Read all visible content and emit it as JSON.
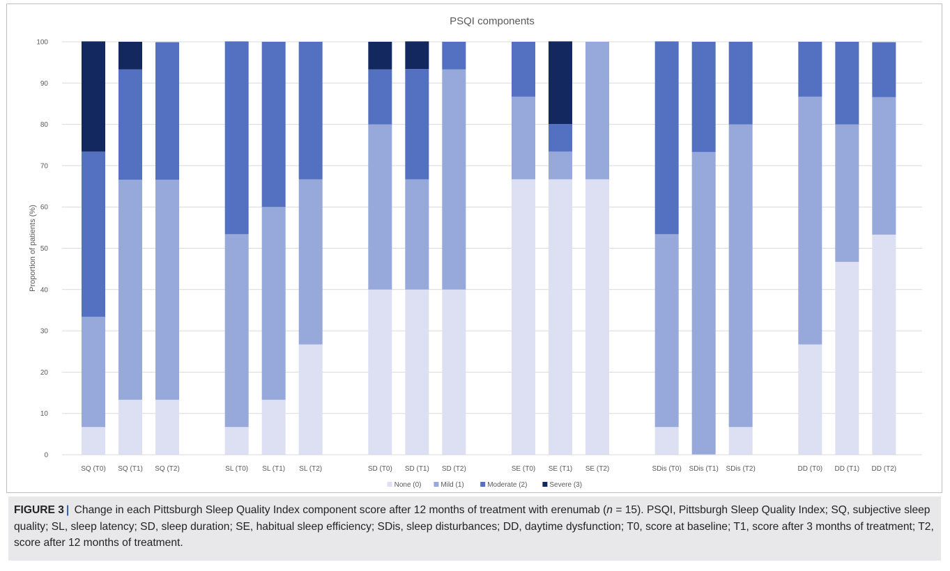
{
  "chart_data": {
    "type": "bar",
    "stacked": true,
    "title": "PSQI components",
    "xlabel": "",
    "ylabel": "Proportion of patients (%)",
    "ylim": [
      0,
      100
    ],
    "yticks": [
      0,
      10,
      20,
      30,
      40,
      50,
      60,
      70,
      80,
      90,
      100
    ],
    "grid": true,
    "legend_position": "bottom",
    "groups": [
      [
        "SQ (T0)",
        "SQ (T1)",
        "SQ (T2)"
      ],
      [
        "SL (T0)",
        "SL (T1)",
        "SL (T2)"
      ],
      [
        "SD (T0)",
        "SD (T1)",
        "SD (T2)"
      ],
      [
        "SE (T0)",
        "SE (T1)",
        "SE (T2)"
      ],
      [
        "SDis (T0)",
        "SDis (T1)",
        "SDis (T2)"
      ],
      [
        "DD (T0)",
        "DD (T1)",
        "DD (T2)"
      ]
    ],
    "categories": [
      "SQ (T0)",
      "SQ (T1)",
      "SQ (T2)",
      "SL (T0)",
      "SL (T1)",
      "SL (T2)",
      "SD (T0)",
      "SD (T1)",
      "SD (T2)",
      "SE (T0)",
      "SE (T1)",
      "SE (T2)",
      "SDis (T0)",
      "SDis (T1)",
      "SDis (T2)",
      "DD (T0)",
      "DD (T1)",
      "DD (T2)"
    ],
    "series": [
      {
        "name": "None (0)",
        "color": "#dde0f2",
        "values": [
          6.7,
          13.3,
          13.3,
          6.7,
          13.3,
          26.7,
          40,
          40,
          40,
          66.7,
          66.7,
          66.7,
          6.7,
          0,
          6.7,
          26.7,
          46.7,
          53.3
        ]
      },
      {
        "name": "Mild (1)",
        "color": "#97a8da",
        "values": [
          26.7,
          53.3,
          53.3,
          46.7,
          46.7,
          40,
          40,
          26.7,
          53.3,
          20,
          6.7,
          33.3,
          46.7,
          73.3,
          73.3,
          60,
          33.3,
          33.3
        ]
      },
      {
        "name": "Moderate (2)",
        "color": "#5470c0",
        "values": [
          40,
          26.7,
          33.3,
          46.7,
          40,
          33.3,
          13.3,
          26.7,
          6.7,
          13.3,
          6.7,
          0,
          46.7,
          26.7,
          20,
          13.3,
          20,
          13.3
        ]
      },
      {
        "name": "Severe (3)",
        "color": "#13285e",
        "values": [
          26.7,
          6.7,
          0,
          0,
          0,
          0,
          6.7,
          6.7,
          0,
          0,
          20,
          0,
          0,
          0,
          0,
          0,
          0,
          0
        ]
      }
    ]
  },
  "caption": {
    "label": "FIGURE 3",
    "separator": "|",
    "text_1": " Change in each Pittsburgh Sleep Quality Index component score after 12 months of treatment with erenumab (",
    "n_symbol": "n",
    "text_2": " = 15). PSQI, Pittsburgh Sleep Quality Index; SQ, subjective sleep quality; SL, sleep latency; SD, sleep duration; SE, habitual sleep efficiency; SDis, sleep disturbances; DD, daytime dysfunction; T0, score at baseline; T1, score after 3 months of treatment; T2, score after 12 months of treatment."
  }
}
